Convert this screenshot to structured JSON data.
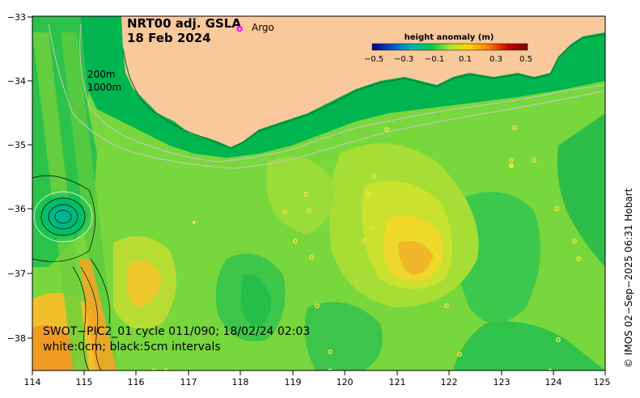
{
  "title": {
    "line1": "NRT00 adj. GSLA",
    "line2": "18 Feb 2024"
  },
  "argo": {
    "symbol": "o",
    "label": "Argo",
    "color": "#ff00ff"
  },
  "legend": {
    "title": "height anomaly (m)",
    "ticks": [
      "−0.5",
      "−0.3",
      "−0.1",
      "0.1",
      "0.3",
      "0.5"
    ],
    "colors": [
      "#000080",
      "#0050c8",
      "#00b4b4",
      "#00c850",
      "#a8e632",
      "#ffd200",
      "#ff7800",
      "#c80000",
      "#780000"
    ]
  },
  "isobaths": {
    "line1": "200m",
    "line2": "1000m"
  },
  "swot": {
    "line1": "SWOT−PIC2_01 cycle 011/090; 18/02/24 02:03",
    "line2": "white:0cm; black:5cm intervals"
  },
  "credit": "© IMOS 02−Sep−2025 06:31 Hobart",
  "axes": {
    "x_ticks": [
      "114",
      "115",
      "116",
      "117",
      "118",
      "119",
      "120",
      "121",
      "122",
      "123",
      "124",
      "125"
    ],
    "y_ticks": [
      "−33",
      "−34",
      "−35",
      "−36",
      "−37",
      "−38"
    ]
  },
  "colors": {
    "land": "#f9c89b",
    "ocean_base": "#78d73c",
    "shelf": "#00b450"
  }
}
